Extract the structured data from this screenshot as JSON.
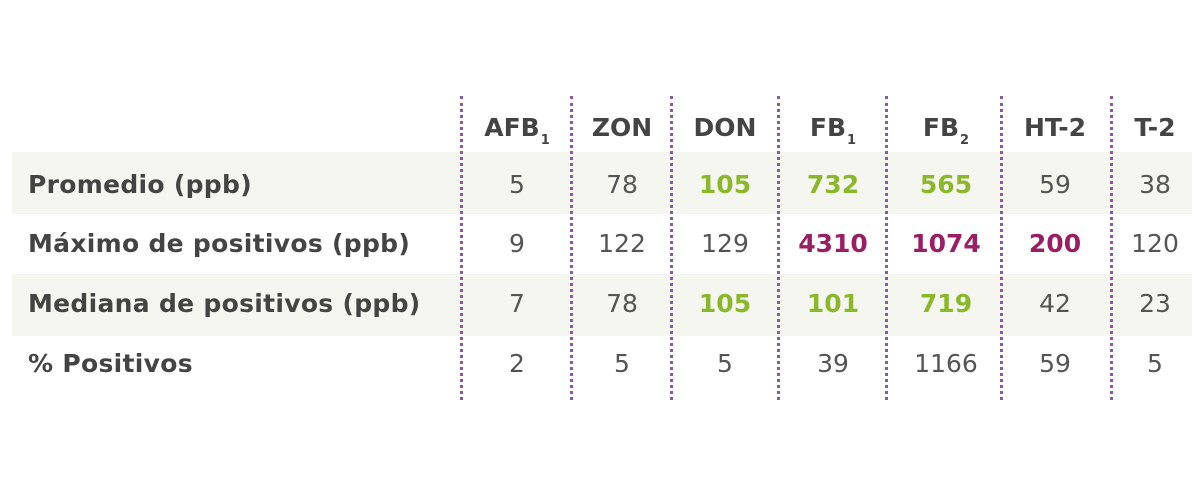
{
  "chart_data": {
    "type": "table",
    "columns": [
      {
        "base": "AFB",
        "sub": "1"
      },
      {
        "base": "ZON",
        "sub": ""
      },
      {
        "base": "DON",
        "sub": ""
      },
      {
        "base": "FB",
        "sub": "1"
      },
      {
        "base": "FB",
        "sub": "2"
      },
      {
        "base": "HT-2",
        "sub": ""
      },
      {
        "base": "T-2",
        "sub": ""
      }
    ],
    "rows": [
      {
        "label": "Promedio (ppb)",
        "values": [
          "5",
          "78",
          "105",
          "732",
          "565",
          "59",
          "38"
        ],
        "highlight": [
          "",
          "",
          "green",
          "green",
          "green",
          "",
          ""
        ]
      },
      {
        "label": "Máximo de positivos (ppb)",
        "values": [
          "9",
          "122",
          "129",
          "4310",
          "1074",
          "200",
          "120"
        ],
        "highlight": [
          "",
          "",
          "",
          "purple",
          "purple",
          "purple",
          ""
        ]
      },
      {
        "label": "Mediana de positivos (ppb)",
        "values": [
          "7",
          "78",
          "105",
          "101",
          "719",
          "42",
          "23"
        ],
        "highlight": [
          "",
          "",
          "green",
          "green",
          "green",
          "",
          ""
        ]
      },
      {
        "label": "% Positivos",
        "values": [
          "2",
          "5",
          "5",
          "39",
          "1166",
          "59",
          "5"
        ],
        "highlight": [
          "",
          "",
          "",
          "",
          "",
          "",
          ""
        ]
      }
    ],
    "colors": {
      "green": "#8bb82a",
      "purple": "#9a1e63",
      "divider": "#8a5a9e",
      "row_shade": "#f5f6ef"
    }
  }
}
